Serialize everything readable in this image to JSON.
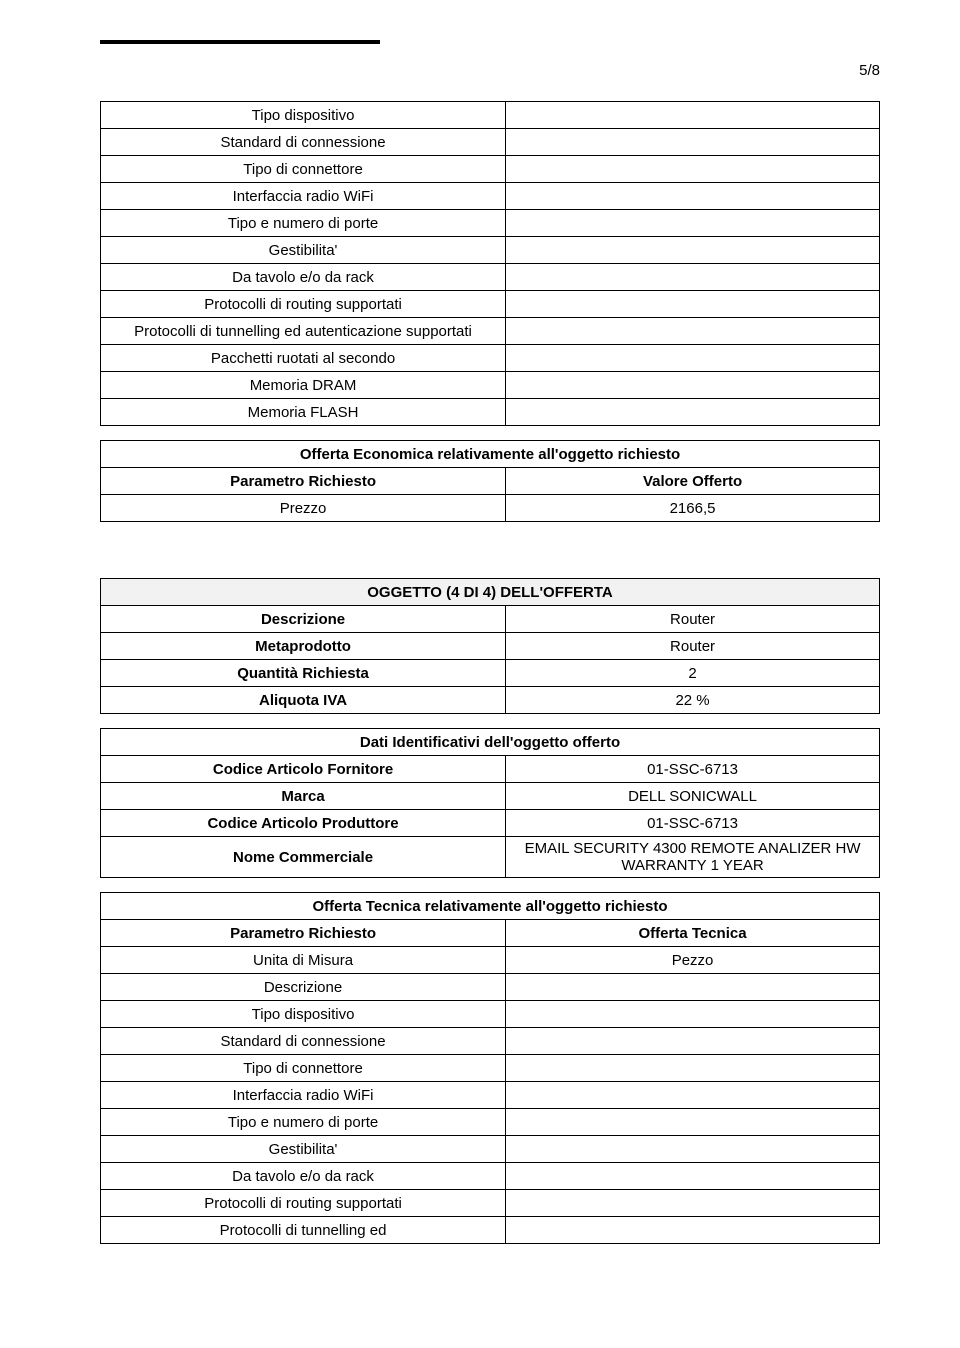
{
  "page_number": "5/8",
  "table1_rows": [
    [
      "Tipo dispositivo",
      ""
    ],
    [
      "Standard di connessione",
      ""
    ],
    [
      "Tipo di connettore",
      ""
    ],
    [
      "Interfaccia radio WiFi",
      ""
    ],
    [
      "Tipo e numero di porte",
      ""
    ],
    [
      "Gestibilita'",
      ""
    ],
    [
      "Da tavolo e/o da rack",
      ""
    ],
    [
      "Protocolli di routing supportati",
      ""
    ],
    [
      "Protocolli di tunnelling ed autenticazione supportati",
      ""
    ],
    [
      "Pacchetti ruotati al secondo",
      ""
    ],
    [
      "Memoria DRAM",
      ""
    ],
    [
      "Memoria FLASH",
      ""
    ]
  ],
  "table2_header": "Offerta Economica relativamente all'oggetto richiesto",
  "table2_rows": [
    [
      "Parametro Richiesto",
      "Valore Offerto"
    ],
    [
      "Prezzo",
      "2166,5"
    ]
  ],
  "table3_header": "OGGETTO (4 DI 4) DELL'OFFERTA",
  "table3_rows": [
    [
      "Descrizione",
      "Router"
    ],
    [
      "Metaprodotto",
      "Router"
    ],
    [
      "Quantità Richiesta",
      "2"
    ],
    [
      "Aliquota IVA",
      "22 %"
    ]
  ],
  "table4_header": "Dati Identificativi dell'oggetto offerto",
  "table4_rows": [
    [
      "Codice Articolo Fornitore",
      "01-SSC-6713"
    ],
    [
      "Marca",
      "DELL SONICWALL"
    ],
    [
      "Codice Articolo Produttore",
      "01-SSC-6713"
    ],
    [
      "Nome Commerciale",
      "EMAIL SECURITY 4300 REMOTE ANALIZER HW WARRANTY 1 YEAR"
    ]
  ],
  "table5_header": "Offerta Tecnica relativamente all'oggetto richiesto",
  "table5_rows": [
    [
      "Parametro Richiesto",
      "Offerta Tecnica"
    ],
    [
      "Unita di Misura",
      "Pezzo"
    ],
    [
      "Descrizione",
      ""
    ],
    [
      "Tipo dispositivo",
      ""
    ],
    [
      "Standard di connessione",
      ""
    ],
    [
      "Tipo di connettore",
      ""
    ],
    [
      "Interfaccia radio WiFi",
      ""
    ],
    [
      "Tipo e numero di porte",
      ""
    ],
    [
      "Gestibilita'",
      ""
    ],
    [
      "Da tavolo e/o da rack",
      ""
    ],
    [
      "Protocolli di routing supportati",
      ""
    ],
    [
      "Protocolli di tunnelling ed",
      ""
    ]
  ]
}
